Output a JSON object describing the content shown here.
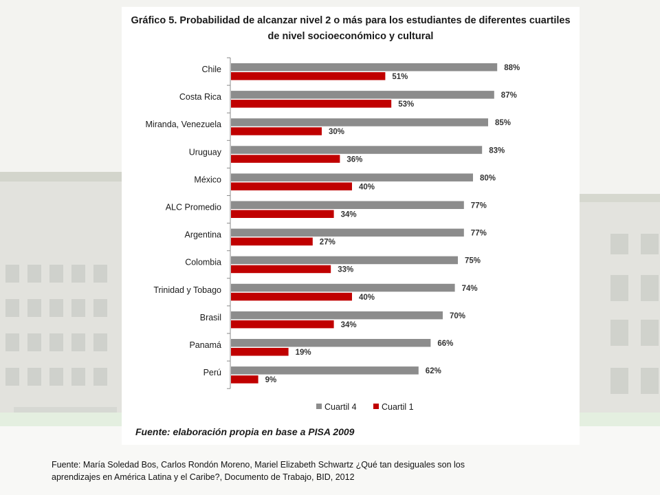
{
  "chart_data": {
    "type": "bar",
    "orientation": "horizontal",
    "title": "Gráfico 5. Probabilidad de alcanzar nivel 2 o más para los estudiantes de diferentes cuartiles de nivel socioeconómico y cultural",
    "title_line1": "Gráfico 5. Probabilidad de alcanzar nivel 2 o más para los estudiantes de diferentes cuartiles",
    "title_line2": "de nivel socioeconómico y cultural",
    "categories": [
      "Chile",
      "Costa Rica",
      "Miranda, Venezuela",
      "Uruguay",
      "México",
      "ALC Promedio",
      "Argentina",
      "Colombia",
      "Trinidad y Tobago",
      "Brasil",
      "Panamá",
      "Perú"
    ],
    "series": [
      {
        "name": "Cuartil 4",
        "color": "#8c8c8c",
        "values": [
          88,
          87,
          85,
          83,
          80,
          77,
          77,
          75,
          74,
          70,
          66,
          62
        ],
        "labels": [
          "88%",
          "87%",
          "85%",
          "83%",
          "80%",
          "77%",
          "77%",
          "75%",
          "74%",
          "70%",
          "66%",
          "62%"
        ]
      },
      {
        "name": "Cuartil 1",
        "color": "#c00000",
        "values": [
          51,
          53,
          30,
          36,
          40,
          34,
          27,
          33,
          40,
          34,
          19,
          9
        ],
        "labels": [
          "51%",
          "53%",
          "30%",
          "36%",
          "40%",
          "34%",
          "27%",
          "33%",
          "40%",
          "34%",
          "19%",
          "9%"
        ]
      }
    ],
    "xlim": [
      0,
      100
    ],
    "grid": false,
    "legend_position": "bottom"
  },
  "source_note": "Fuente: elaboración propia en base a PISA 2009",
  "caption_line1": "Fuente: María Soledad Bos, Carlos Rondón Moreno, Mariel Elizabeth Schwartz ¿Qué tan desiguales son los",
  "caption_line2": "aprendizajes en América Latina y el Caribe?, Documento de Trabajo, BID, 2012"
}
